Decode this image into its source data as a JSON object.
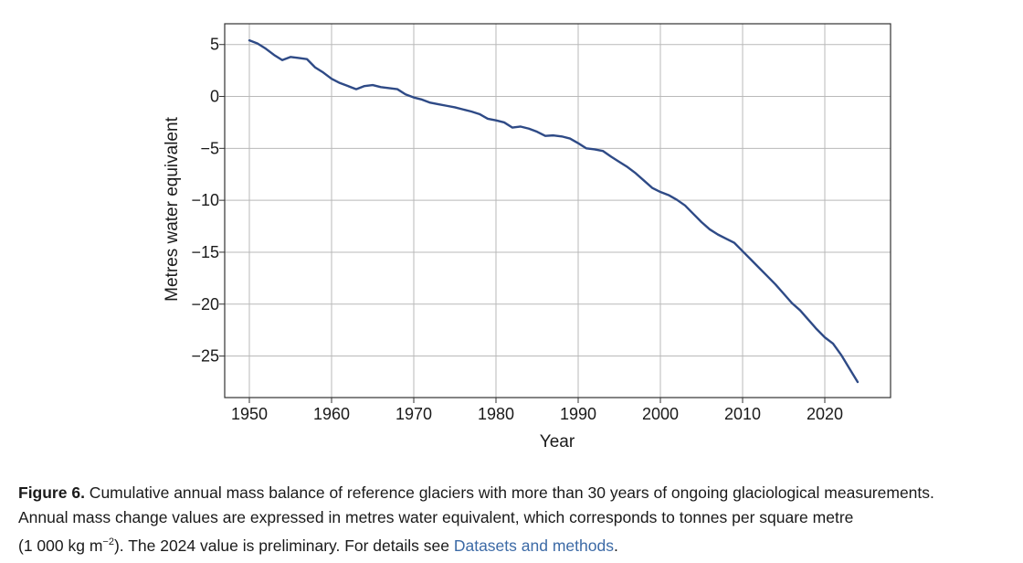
{
  "chart_data": {
    "type": "line",
    "xlabel": "Year",
    "ylabel": "Metres water equivalent",
    "xlim": [
      1947,
      2028
    ],
    "ylim": [
      -29,
      7
    ],
    "xticks": [
      1950,
      1960,
      1970,
      1980,
      1990,
      2000,
      2010,
      2020
    ],
    "yticks": [
      5,
      0,
      -5,
      -10,
      -15,
      -20,
      -25
    ],
    "ytick_labels": [
      "5",
      "0",
      "−5",
      "−10",
      "−15",
      "−20",
      "−25"
    ],
    "grid": true,
    "series": [
      {
        "name": "Cumulative annual mass balance",
        "color": "#2e4a86",
        "x": [
          1950,
          1951,
          1952,
          1953,
          1954,
          1955,
          1956,
          1957,
          1958,
          1959,
          1960,
          1961,
          1962,
          1963,
          1964,
          1965,
          1966,
          1967,
          1968,
          1969,
          1970,
          1971,
          1972,
          1973,
          1974,
          1975,
          1976,
          1977,
          1978,
          1979,
          1980,
          1981,
          1982,
          1983,
          1984,
          1985,
          1986,
          1987,
          1988,
          1989,
          1990,
          1991,
          1992,
          1993,
          1994,
          1995,
          1996,
          1997,
          1998,
          1999,
          2000,
          2001,
          2002,
          2003,
          2004,
          2005,
          2006,
          2007,
          2008,
          2009,
          2010,
          2011,
          2012,
          2013,
          2014,
          2015,
          2016,
          2017,
          2018,
          2019,
          2020,
          2021,
          2022,
          2023,
          2024
        ],
        "values": [
          5.4,
          5.1,
          4.6,
          4.0,
          3.5,
          3.8,
          3.7,
          3.6,
          2.8,
          2.3,
          1.7,
          1.3,
          1.0,
          0.7,
          1.0,
          1.1,
          0.9,
          0.8,
          0.7,
          0.2,
          -0.1,
          -0.3,
          -0.6,
          -0.75,
          -0.9,
          -1.05,
          -1.25,
          -1.45,
          -1.7,
          -2.15,
          -2.3,
          -2.5,
          -3.0,
          -2.9,
          -3.1,
          -3.4,
          -3.8,
          -3.75,
          -3.85,
          -4.05,
          -4.5,
          -5.0,
          -5.1,
          -5.25,
          -5.8,
          -6.3,
          -6.8,
          -7.4,
          -8.1,
          -8.8,
          -9.2,
          -9.5,
          -9.95,
          -10.5,
          -11.3,
          -12.1,
          -12.8,
          -13.3,
          -13.7,
          -14.1,
          -14.9,
          -15.7,
          -16.5,
          -17.3,
          -18.1,
          -19.0,
          -19.9,
          -20.6,
          -21.5,
          -22.4,
          -23.2,
          -23.8,
          -24.9,
          -26.2,
          -27.5
        ]
      }
    ]
  },
  "caption": {
    "label": "Figure 6.",
    "text_line1": " Cumulative annual mass balance of reference glaciers with more than 30 years of ongoing glaciological measurements.",
    "text_line2": "Annual mass change values are expressed in metres water equivalent, which corresponds to tonnes per square metre",
    "text_line3_pre": "(1 000 kg m",
    "text_line3_sup": "−2",
    "text_line3_mid": "). The 2024 value is preliminary. For details see ",
    "link_text": "Datasets and methods",
    "text_line3_end": "."
  }
}
